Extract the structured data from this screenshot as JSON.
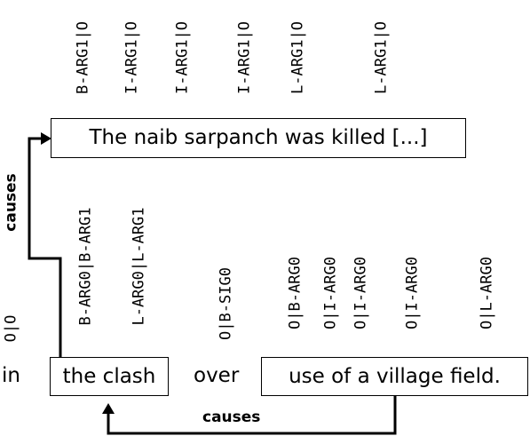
{
  "top": {
    "sentence": "The naib sarpanch was killed [...]",
    "tags": [
      "B-ARG1|O",
      "I-ARG1|O",
      "I-ARG1|O",
      "I-ARG1|O",
      "L-ARG1|O",
      "L-ARG1|O"
    ]
  },
  "bottom": {
    "tokens": [
      {
        "text": "in",
        "tag": "O|O"
      },
      {
        "text": "the clash",
        "tags": [
          "B-ARG0|B-ARG1",
          "L-ARG0|L-ARG1"
        ]
      },
      {
        "text": "over",
        "tag": "O|B-SIG0"
      },
      {
        "text": "use of a village field.",
        "tags": [
          "O|B-ARG0",
          "O|I-ARG0",
          "O|I-ARG0",
          "O|I-ARG0",
          "O|L-ARG0"
        ]
      }
    ]
  },
  "relations": {
    "left": "causes",
    "bottom": "causes"
  }
}
